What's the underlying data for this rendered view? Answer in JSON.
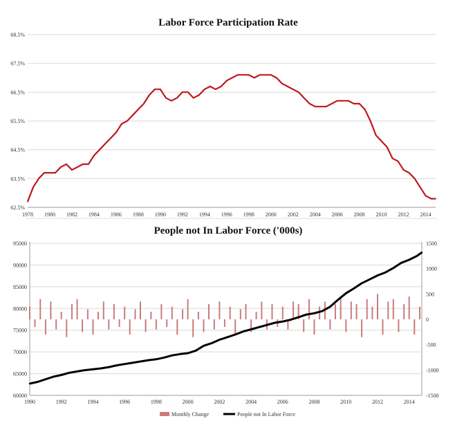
{
  "chart_data": [
    {
      "type": "line",
      "title": "Labor Force Participation Rate",
      "xlabel": "",
      "ylabel": "",
      "xlim": [
        1978,
        2014.9
      ],
      "ylim": [
        62.5,
        68.5
      ],
      "grid": true,
      "y_ticks": [
        "62.5%",
        "63.5%",
        "64.5%",
        "65.5%",
        "66.5%",
        "67.5%",
        "68.5%"
      ],
      "x_ticks": [
        "1978",
        "1980",
        "1982",
        "1984",
        "1986",
        "1988",
        "1990",
        "1992",
        "1994",
        "1996",
        "1998",
        "2000",
        "2002",
        "2004",
        "2006",
        "2008",
        "2010",
        "2012",
        "2014"
      ],
      "series": [
        {
          "color": "#c0161c",
          "x": [
            1978.0,
            1978.5,
            1979.0,
            1979.5,
            1980.0,
            1980.5,
            1981.0,
            1981.5,
            1982.0,
            1982.5,
            1983.0,
            1983.5,
            1984.0,
            1984.5,
            1985.0,
            1985.5,
            1986.0,
            1986.5,
            1987.0,
            1987.5,
            1988.0,
            1988.5,
            1989.0,
            1989.5,
            1990.0,
            1990.5,
            1991.0,
            1991.5,
            1992.0,
            1992.5,
            1993.0,
            1993.5,
            1994.0,
            1994.5,
            1995.0,
            1995.5,
            1996.0,
            1996.5,
            1997.0,
            1997.5,
            1998.0,
            1998.5,
            1999.0,
            1999.5,
            2000.0,
            2000.5,
            2001.0,
            2001.5,
            2002.0,
            2002.5,
            2003.0,
            2003.5,
            2004.0,
            2004.5,
            2005.0,
            2005.5,
            2006.0,
            2006.5,
            2007.0,
            2007.5,
            2008.0,
            2008.5,
            2009.0,
            2009.5,
            2010.0,
            2010.5,
            2011.0,
            2011.5,
            2012.0,
            2012.5,
            2013.0,
            2013.5,
            2014.0,
            2014.5,
            2014.9
          ],
          "y": [
            62.7,
            63.2,
            63.5,
            63.7,
            63.7,
            63.7,
            63.9,
            64.0,
            63.8,
            63.9,
            64.0,
            64.0,
            64.3,
            64.5,
            64.7,
            64.9,
            65.1,
            65.4,
            65.5,
            65.7,
            65.9,
            66.1,
            66.4,
            66.6,
            66.6,
            66.3,
            66.2,
            66.3,
            66.5,
            66.5,
            66.3,
            66.4,
            66.6,
            66.7,
            66.6,
            66.7,
            66.9,
            67.0,
            67.1,
            67.1,
            67.1,
            67.0,
            67.1,
            67.1,
            67.1,
            67.0,
            66.8,
            66.7,
            66.6,
            66.5,
            66.3,
            66.1,
            66.0,
            66.0,
            66.0,
            66.1,
            66.2,
            66.2,
            66.2,
            66.1,
            66.1,
            65.9,
            65.5,
            65.0,
            64.8,
            64.6,
            64.2,
            64.1,
            63.8,
            63.7,
            63.5,
            63.2,
            62.9,
            62.8,
            62.8
          ]
        }
      ]
    },
    {
      "type": "line",
      "title": "People not In Labor Force ('000s)",
      "xlabel": "",
      "ylabel": "",
      "xlim": [
        1990,
        2014.8
      ],
      "ylim": [
        60000,
        95000
      ],
      "y2lim": [
        -1500,
        1500
      ],
      "grid": true,
      "legend_position": "bottom",
      "y_ticks": [
        "60000",
        "65000",
        "70000",
        "75000",
        "80000",
        "85000",
        "90000",
        "95000"
      ],
      "y2_ticks": [
        "-1500",
        "-1000",
        "-500",
        "0",
        "500",
        "1000",
        "1500"
      ],
      "x_ticks": [
        "1990",
        "1992",
        "1994",
        "1996",
        "1998",
        "2000",
        "2002",
        "2004",
        "2006",
        "2008",
        "2010",
        "2012",
        "2014"
      ],
      "series": [
        {
          "name": "Monthly Change",
          "type": "bar",
          "axis": "right",
          "color": "#c97b7b",
          "x": [
            1990.0,
            1990.33,
            1990.67,
            1991.0,
            1991.33,
            1991.67,
            1992.0,
            1992.33,
            1992.67,
            1993.0,
            1993.33,
            1993.67,
            1994.0,
            1994.33,
            1994.67,
            1995.0,
            1995.33,
            1995.67,
            1996.0,
            1996.33,
            1996.67,
            1997.0,
            1997.33,
            1997.67,
            1998.0,
            1998.33,
            1998.67,
            1999.0,
            1999.33,
            1999.67,
            2000.0,
            2000.33,
            2000.67,
            2001.0,
            2001.33,
            2001.67,
            2002.0,
            2002.33,
            2002.67,
            2003.0,
            2003.33,
            2003.67,
            2004.0,
            2004.33,
            2004.67,
            2005.0,
            2005.33,
            2005.67,
            2006.0,
            2006.33,
            2006.67,
            2007.0,
            2007.33,
            2007.67,
            2008.0,
            2008.33,
            2008.67,
            2009.0,
            2009.33,
            2009.67,
            2010.0,
            2010.33,
            2010.67,
            2011.0,
            2011.33,
            2011.67,
            2012.0,
            2012.33,
            2012.67,
            2013.0,
            2013.33,
            2013.67,
            2014.0,
            2014.33,
            2014.67
          ],
          "values": [
            250,
            -150,
            400,
            -300,
            350,
            -200,
            150,
            -350,
            300,
            400,
            -250,
            200,
            -300,
            150,
            350,
            -200,
            300,
            -150,
            250,
            -300,
            200,
            350,
            -250,
            150,
            -200,
            300,
            -150,
            250,
            -300,
            200,
            400,
            -350,
            150,
            -250,
            300,
            -200,
            350,
            -150,
            250,
            -300,
            200,
            300,
            -250,
            150,
            350,
            -200,
            300,
            -150,
            250,
            -200,
            350,
            300,
            -250,
            400,
            -300,
            250,
            350,
            -200,
            300,
            450,
            -250,
            350,
            300,
            -350,
            400,
            250,
            500,
            -300,
            350,
            400,
            -250,
            300,
            450,
            -300,
            250
          ]
        },
        {
          "name": "People not In Labor Force",
          "type": "line",
          "axis": "left",
          "color": "#000000",
          "x": [
            1990.0,
            1990.5,
            1991.0,
            1991.5,
            1992.0,
            1992.5,
            1993.0,
            1993.5,
            1994.0,
            1994.5,
            1995.0,
            1995.5,
            1996.0,
            1996.5,
            1997.0,
            1997.5,
            1998.0,
            1998.5,
            1999.0,
            1999.5,
            2000.0,
            2000.5,
            2001.0,
            2001.5,
            2002.0,
            2002.5,
            2003.0,
            2003.5,
            2004.0,
            2004.5,
            2005.0,
            2005.5,
            2006.0,
            2006.5,
            2007.0,
            2007.5,
            2008.0,
            2008.5,
            2009.0,
            2009.5,
            2010.0,
            2010.5,
            2011.0,
            2011.5,
            2012.0,
            2012.5,
            2013.0,
            2013.5,
            2014.0,
            2014.5,
            2014.8
          ],
          "y": [
            62700,
            63100,
            63700,
            64300,
            64700,
            65200,
            65500,
            65800,
            66000,
            66200,
            66500,
            66900,
            67200,
            67500,
            67800,
            68100,
            68300,
            68700,
            69200,
            69500,
            69700,
            70300,
            71400,
            72000,
            72800,
            73400,
            74000,
            74700,
            75200,
            75700,
            76200,
            76700,
            77000,
            77400,
            78000,
            78600,
            78900,
            79400,
            80400,
            82000,
            83500,
            84600,
            85800,
            86700,
            87600,
            88300,
            89300,
            90500,
            91200,
            92100,
            92900
          ]
        }
      ]
    }
  ]
}
